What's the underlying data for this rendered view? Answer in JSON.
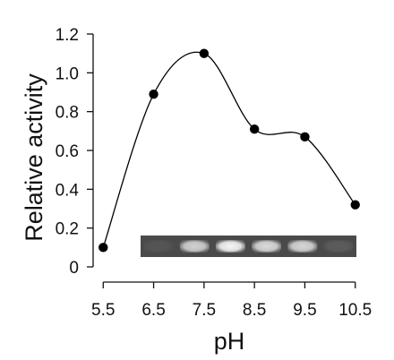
{
  "chart_data": {
    "type": "scatter",
    "title": "",
    "xlabel": "pH",
    "ylabel": "Relative activity",
    "xlim": [
      5.3,
      10.7
    ],
    "ylim": [
      0,
      1.2
    ],
    "x_ticks": [
      5.5,
      6.5,
      7.5,
      8.5,
      9.5,
      10.5
    ],
    "x_tick_labels": [
      "5.5",
      "6.5",
      "7.5",
      "8.5",
      "9.5",
      "10.5"
    ],
    "y_ticks": [
      0,
      0.2,
      0.4,
      0.6,
      0.8,
      1.0,
      1.2
    ],
    "y_tick_labels": [
      "0",
      "0.2",
      "0.4",
      "0.6",
      "0.8",
      "1.0",
      "1.2"
    ],
    "grid": false,
    "series": [
      {
        "x": [
          5.5,
          6.5,
          7.5,
          8.5,
          9.5,
          10.5
        ],
        "y": [
          0.1,
          0.89,
          1.1,
          0.71,
          0.67,
          0.32
        ],
        "marker": "filled-circle",
        "line": "smooth",
        "color": "#000000"
      }
    ],
    "inset": {
      "type": "gel-image",
      "lanes": [
        "5.5",
        "6.5",
        "7.5",
        "8.5",
        "9.5",
        "10.5"
      ],
      "band_intensity": [
        0.05,
        0.75,
        0.95,
        0.8,
        0.78,
        0.1
      ],
      "background": "#4a4a4a"
    }
  }
}
